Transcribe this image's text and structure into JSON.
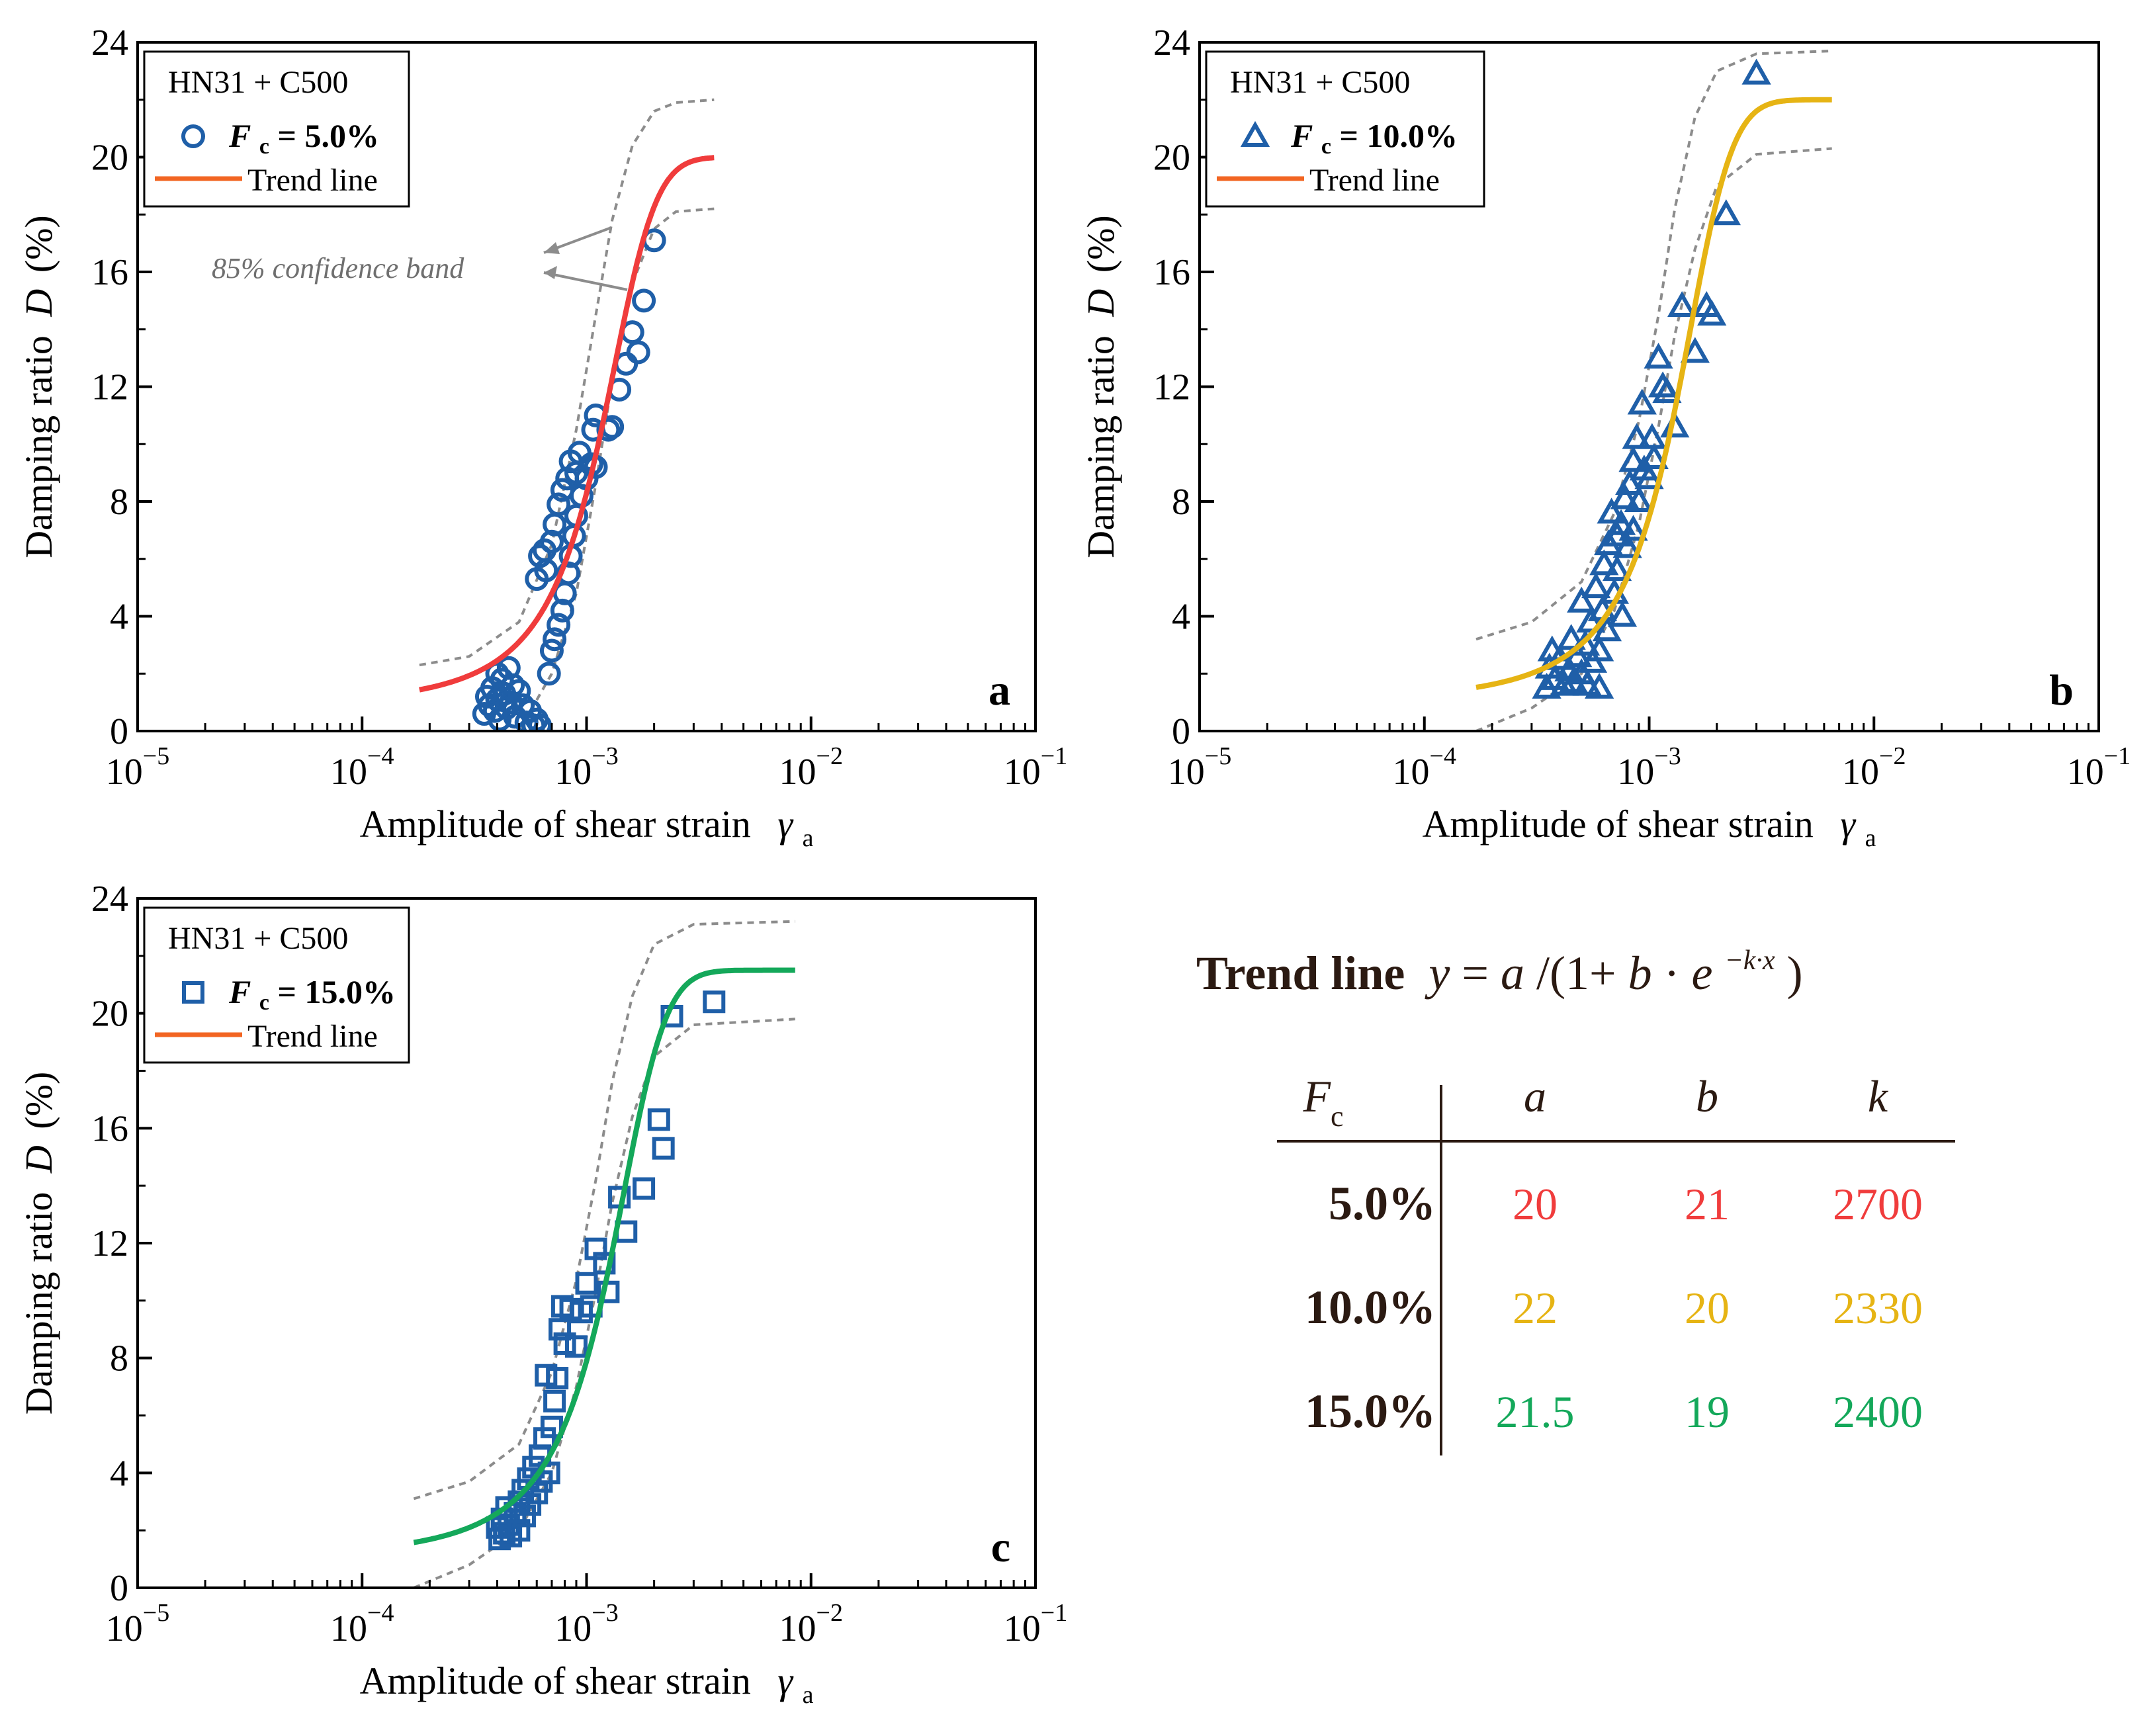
{
  "colors": {
    "marker": "#1f5fa8",
    "legend_trend": "#f26522",
    "band": "#8c8c8c",
    "trend_a": "#f03c3c",
    "trend_b": "#e6b414",
    "trend_c": "#14a85a",
    "table_text": "#2b1a12"
  },
  "chart_data": [
    {
      "panel": "a",
      "type": "scatter",
      "marker": "circle",
      "title": "",
      "xlabel": "Amplitude of shear strain",
      "xlabel_symbol": "γ",
      "xlabel_sub": "a",
      "ylabel": "Damping ratio",
      "ylabel_symbol": "D",
      "ylabel_unit": "(%)",
      "xscale": "log",
      "xlim": [
        1e-05,
        0.1
      ],
      "ylim": [
        0,
        24
      ],
      "xticks": [
        {
          "base": "10",
          "exp": "−5"
        },
        {
          "base": "10",
          "exp": "−4"
        },
        {
          "base": "10",
          "exp": "−3"
        },
        {
          "base": "10",
          "exp": "−2"
        },
        {
          "base": "10",
          "exp": "−1"
        }
      ],
      "yticks": [
        "0",
        "4",
        "8",
        "12",
        "16",
        "20",
        "24"
      ],
      "legend": {
        "title": "HN31 + C500",
        "series_prefix": "F",
        "series_sub": "c",
        "series_value": " = 5.0%",
        "trend_label": "Trend line"
      },
      "panel_label": "a",
      "annotation": "85% confidence band",
      "trend": {
        "a": 20,
        "b": 21,
        "k": 2700,
        "x_range": [
          0.00018,
          0.0037
        ]
      },
      "band_upper": [
        [
          0.00018,
          2.3
        ],
        [
          0.0003,
          2.6
        ],
        [
          0.0005,
          3.8
        ],
        [
          0.0007,
          6.5
        ],
        [
          0.0009,
          10.5
        ],
        [
          0.0011,
          14.5
        ],
        [
          0.0013,
          17.8
        ],
        [
          0.0016,
          20.4
        ],
        [
          0.002,
          21.6
        ],
        [
          0.0025,
          21.9
        ],
        [
          0.0037,
          22.0
        ]
      ],
      "band_lower": [
        [
          0.0005,
          0.0
        ],
        [
          0.0007,
          2.0
        ],
        [
          0.0009,
          4.8
        ],
        [
          0.0011,
          8.6
        ],
        [
          0.0013,
          12.2
        ],
        [
          0.0016,
          15.6
        ],
        [
          0.002,
          17.5
        ],
        [
          0.0025,
          18.1
        ],
        [
          0.0037,
          18.2
        ]
      ],
      "points": [
        [
          0.00035,
          0.6
        ],
        [
          0.00036,
          1.2
        ],
        [
          0.00037,
          0.9
        ],
        [
          0.00038,
          1.5
        ],
        [
          0.00039,
          0.7
        ],
        [
          0.0004,
          2.0
        ],
        [
          0.0004,
          1.1
        ],
        [
          0.00041,
          0.4
        ],
        [
          0.00042,
          1.8
        ],
        [
          0.00043,
          1.3
        ],
        [
          0.00044,
          0.8
        ],
        [
          0.00045,
          2.2
        ],
        [
          0.00046,
          1.0
        ],
        [
          0.00047,
          1.6
        ],
        [
          0.00048,
          0.5
        ],
        [
          0.0005,
          1.4
        ],
        [
          0.00052,
          0.9
        ],
        [
          0.00054,
          0.3
        ],
        [
          0.00056,
          0.7
        ],
        [
          0.00058,
          0.2
        ],
        [
          0.0006,
          0.4
        ],
        [
          0.00062,
          0.2
        ],
        [
          0.0006,
          5.3
        ],
        [
          0.00062,
          6.1
        ],
        [
          0.00065,
          6.3
        ],
        [
          0.00066,
          5.6
        ],
        [
          0.0007,
          6.6
        ],
        [
          0.00072,
          7.2
        ],
        [
          0.00075,
          7.9
        ],
        [
          0.00078,
          8.4
        ],
        [
          0.00082,
          8.8
        ],
        [
          0.00085,
          9.4
        ],
        [
          0.0009,
          9.0
        ],
        [
          0.00093,
          9.7
        ],
        [
          0.00068,
          2.0
        ],
        [
          0.0007,
          2.8
        ],
        [
          0.00072,
          3.2
        ],
        [
          0.00075,
          3.7
        ],
        [
          0.00078,
          4.2
        ],
        [
          0.0008,
          4.8
        ],
        [
          0.00083,
          5.5
        ],
        [
          0.00085,
          6.1
        ],
        [
          0.00088,
          6.8
        ],
        [
          0.0009,
          7.5
        ],
        [
          0.00095,
          8.2
        ],
        [
          0.001,
          8.8
        ],
        [
          0.00105,
          9.3
        ],
        [
          0.0011,
          9.2
        ],
        [
          0.00107,
          10.5
        ],
        [
          0.0011,
          11.0
        ],
        [
          0.00125,
          10.5
        ],
        [
          0.0013,
          10.6
        ],
        [
          0.0014,
          11.9
        ],
        [
          0.0015,
          12.8
        ],
        [
          0.0016,
          13.9
        ],
        [
          0.0017,
          13.2
        ],
        [
          0.0018,
          15.0
        ],
        [
          0.002,
          17.1
        ]
      ]
    },
    {
      "panel": "b",
      "type": "scatter",
      "marker": "triangle",
      "title": "",
      "xlabel": "Amplitude of shear strain",
      "xlabel_symbol": "γ",
      "xlabel_sub": "a",
      "ylabel": "Damping ratio",
      "ylabel_symbol": "D",
      "ylabel_unit": "(%)",
      "xscale": "log",
      "xlim": [
        1e-05,
        0.1
      ],
      "ylim": [
        0,
        24
      ],
      "xticks": [
        {
          "base": "10",
          "exp": "−5"
        },
        {
          "base": "10",
          "exp": "−4"
        },
        {
          "base": "10",
          "exp": "−3"
        },
        {
          "base": "10",
          "exp": "−2"
        },
        {
          "base": "10",
          "exp": "−1"
        }
      ],
      "yticks": [
        "0",
        "4",
        "8",
        "12",
        "16",
        "20",
        "24"
      ],
      "legend": {
        "title": "HN31 + C500",
        "series_prefix": "F",
        "series_sub": "c",
        "series_value": " = 10.0%",
        "trend_label": "Trend line"
      },
      "panel_label": "b",
      "trend": {
        "a": 22,
        "b": 20,
        "k": 2330,
        "x_range": [
          0.00017,
          0.0065
        ]
      },
      "band_upper": [
        [
          0.00017,
          3.2
        ],
        [
          0.0003,
          3.8
        ],
        [
          0.0005,
          5.2
        ],
        [
          0.0007,
          7.6
        ],
        [
          0.0009,
          10.8
        ],
        [
          0.0011,
          14.5
        ],
        [
          0.0013,
          18.2
        ],
        [
          0.0016,
          21.4
        ],
        [
          0.002,
          23.0
        ],
        [
          0.003,
          23.6
        ],
        [
          0.0065,
          23.7
        ]
      ],
      "band_lower": [
        [
          0.00017,
          0.0
        ],
        [
          0.0003,
          0.8
        ],
        [
          0.0005,
          2.0
        ],
        [
          0.0007,
          4.2
        ],
        [
          0.0009,
          7.2
        ],
        [
          0.0011,
          10.6
        ],
        [
          0.0013,
          13.8
        ],
        [
          0.0016,
          16.8
        ],
        [
          0.002,
          19.0
        ],
        [
          0.003,
          20.1
        ],
        [
          0.0065,
          20.3
        ]
      ],
      "points": [
        [
          0.00035,
          1.5
        ],
        [
          0.00036,
          2.2
        ],
        [
          0.00037,
          2.8
        ],
        [
          0.00038,
          1.8
        ],
        [
          0.0004,
          2.5
        ],
        [
          0.00042,
          1.6
        ],
        [
          0.00044,
          2.1
        ],
        [
          0.00045,
          3.2
        ],
        [
          0.00046,
          1.7
        ],
        [
          0.00048,
          2.6
        ],
        [
          0.0005,
          4.5
        ],
        [
          0.0005,
          2.0
        ],
        [
          0.00052,
          3.0
        ],
        [
          0.00053,
          1.6
        ],
        [
          0.00055,
          3.8
        ],
        [
          0.00056,
          2.4
        ],
        [
          0.00058,
          5.0
        ],
        [
          0.0006,
          2.8
        ],
        [
          0.0006,
          1.5
        ],
        [
          0.00062,
          4.2
        ],
        [
          0.00063,
          5.8
        ],
        [
          0.00065,
          3.5
        ],
        [
          0.00066,
          6.5
        ],
        [
          0.00068,
          7.6
        ],
        [
          0.0007,
          4.8
        ],
        [
          0.00072,
          5.6
        ],
        [
          0.00072,
          6.8
        ],
        [
          0.00075,
          7.2
        ],
        [
          0.00076,
          4.0
        ],
        [
          0.00078,
          8.1
        ],
        [
          0.0008,
          6.4
        ],
        [
          0.00082,
          8.6
        ],
        [
          0.00085,
          9.4
        ],
        [
          0.00085,
          7.0
        ],
        [
          0.00088,
          10.2
        ],
        [
          0.0009,
          8.0
        ],
        [
          0.00093,
          11.4
        ],
        [
          0.00095,
          9.1
        ],
        [
          0.001,
          8.8
        ],
        [
          0.00103,
          10.2
        ],
        [
          0.00105,
          9.5
        ],
        [
          0.0011,
          13.0
        ],
        [
          0.00115,
          12.0
        ],
        [
          0.0012,
          11.8
        ],
        [
          0.0013,
          10.6
        ],
        [
          0.0014,
          14.8
        ],
        [
          0.0016,
          13.2
        ],
        [
          0.0018,
          14.8
        ],
        [
          0.0019,
          14.5
        ],
        [
          0.0022,
          18.0
        ],
        [
          0.003,
          22.9
        ]
      ]
    },
    {
      "panel": "c",
      "type": "scatter",
      "marker": "square",
      "title": "",
      "xlabel": "Amplitude of shear strain",
      "xlabel_symbol": "γ",
      "xlabel_sub": "a",
      "ylabel": "Damping ratio",
      "ylabel_symbol": "D",
      "ylabel_unit": "(%)",
      "xscale": "log",
      "xlim": [
        1e-05,
        0.1
      ],
      "ylim": [
        0,
        24
      ],
      "xticks": [
        {
          "base": "10",
          "exp": "−5"
        },
        {
          "base": "10",
          "exp": "−4"
        },
        {
          "base": "10",
          "exp": "−3"
        },
        {
          "base": "10",
          "exp": "−2"
        },
        {
          "base": "10",
          "exp": "−1"
        }
      ],
      "yticks": [
        "0",
        "4",
        "8",
        "12",
        "16",
        "20",
        "24"
      ],
      "legend": {
        "title": "HN31 + C500",
        "series_prefix": "F",
        "series_sub": "c",
        "series_value": " = 15.0%",
        "trend_label": "Trend line"
      },
      "panel_label": "c",
      "trend": {
        "a": 21.5,
        "b": 19,
        "k": 2400,
        "x_range": [
          0.00017,
          0.0085
        ]
      },
      "band_upper": [
        [
          0.00017,
          3.1
        ],
        [
          0.0003,
          3.7
        ],
        [
          0.0005,
          5.0
        ],
        [
          0.0007,
          7.5
        ],
        [
          0.0009,
          10.7
        ],
        [
          0.0011,
          14.2
        ],
        [
          0.0013,
          17.6
        ],
        [
          0.0016,
          20.6
        ],
        [
          0.002,
          22.4
        ],
        [
          0.003,
          23.1
        ],
        [
          0.0085,
          23.2
        ]
      ],
      "band_lower": [
        [
          0.00017,
          0.0
        ],
        [
          0.0003,
          0.8
        ],
        [
          0.0005,
          2.0
        ],
        [
          0.0007,
          4.0
        ],
        [
          0.0009,
          7.0
        ],
        [
          0.0011,
          10.3
        ],
        [
          0.0013,
          13.4
        ],
        [
          0.0016,
          16.4
        ],
        [
          0.002,
          18.5
        ],
        [
          0.003,
          19.6
        ],
        [
          0.0085,
          19.8
        ]
      ],
      "points": [
        [
          0.0004,
          2.1
        ],
        [
          0.00041,
          1.7
        ],
        [
          0.00042,
          2.4
        ],
        [
          0.00043,
          1.9
        ],
        [
          0.00044,
          2.8
        ],
        [
          0.00045,
          2.2
        ],
        [
          0.00046,
          1.8
        ],
        [
          0.00048,
          2.6
        ],
        [
          0.0005,
          3.0
        ],
        [
          0.0005,
          2.0
        ],
        [
          0.00052,
          3.4
        ],
        [
          0.00053,
          2.5
        ],
        [
          0.00055,
          3.8
        ],
        [
          0.00056,
          2.9
        ],
        [
          0.00058,
          4.2
        ],
        [
          0.0006,
          3.3
        ],
        [
          0.00062,
          4.6
        ],
        [
          0.00063,
          3.7
        ],
        [
          0.00065,
          5.2
        ],
        [
          0.00066,
          7.4
        ],
        [
          0.00068,
          4.0
        ],
        [
          0.0007,
          5.6
        ],
        [
          0.00072,
          6.5
        ],
        [
          0.00074,
          7.3
        ],
        [
          0.00076,
          9.0
        ],
        [
          0.00078,
          9.8
        ],
        [
          0.0008,
          8.5
        ],
        [
          0.00085,
          9.7
        ],
        [
          0.0009,
          8.4
        ],
        [
          0.00095,
          9.6
        ],
        [
          0.001,
          10.6
        ],
        [
          0.00105,
          9.8
        ],
        [
          0.0011,
          11.8
        ],
        [
          0.0012,
          11.3
        ],
        [
          0.00125,
          10.3
        ],
        [
          0.0014,
          13.6
        ],
        [
          0.0015,
          12.4
        ],
        [
          0.0018,
          13.9
        ],
        [
          0.0021,
          16.3
        ],
        [
          0.0022,
          15.3
        ],
        [
          0.0024,
          19.9
        ],
        [
          0.0037,
          20.4
        ]
      ]
    }
  ],
  "trend_table": {
    "heading_bold": "Trend line",
    "formula": {
      "y": "y",
      "eq": " = ",
      "a": "a",
      "open": "/(1+",
      "b": "b",
      "dot": "·",
      "e": "e",
      "exp": "−k·x",
      "close": ")"
    },
    "headers": {
      "fc": "F",
      "fc_sub": "c",
      "a": "a",
      "b": "b",
      "k": "k"
    },
    "rows": [
      {
        "fc": "5.0%",
        "a": "20",
        "b": "21",
        "k": "2700"
      },
      {
        "fc": "10.0%",
        "a": "22",
        "b": "20",
        "k": "2330"
      },
      {
        "fc": "15.0%",
        "a": "21.5",
        "b": "19",
        "k": "2400"
      }
    ]
  }
}
